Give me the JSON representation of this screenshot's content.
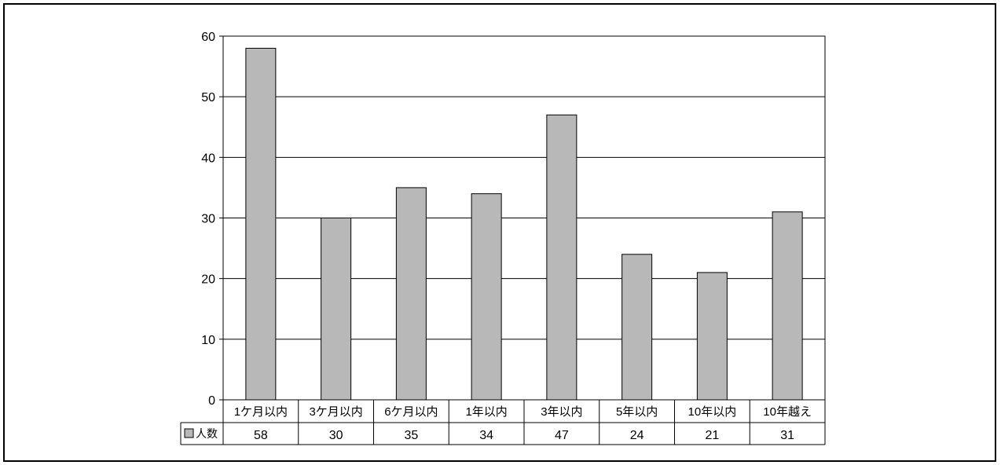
{
  "chart_data": {
    "type": "bar",
    "categories": [
      "1ケ月以内",
      "3ケ月以内",
      "6ケ月以内",
      "1年以内",
      "3年以内",
      "5年以内",
      "10年以内",
      "10年越え"
    ],
    "series": [
      {
        "name": "人数",
        "values": [
          58,
          30,
          35,
          34,
          47,
          24,
          21,
          31
        ]
      }
    ],
    "y_ticks": [
      "0",
      "10",
      "20",
      "30",
      "40",
      "50",
      "60"
    ],
    "ylim": [
      0,
      60
    ],
    "grid": true,
    "legend": "data-table-left",
    "data_table": true,
    "colors": {
      "bar": "#b8b8b8",
      "bar_stroke": "#000000",
      "grid": "#000000"
    }
  }
}
